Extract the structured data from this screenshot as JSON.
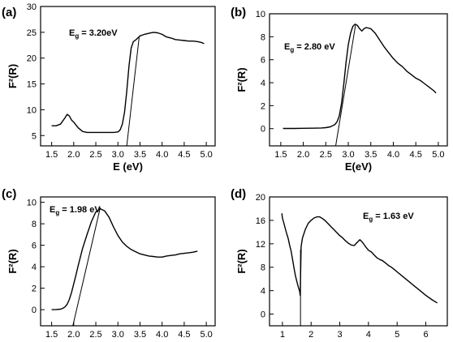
{
  "chart_data": [
    {
      "type": "line",
      "panel": "(a)",
      "xlabel": "E (eV)",
      "ylabel": "F²(R)",
      "xlim": [
        1.25,
        5.2
      ],
      "ylim": [
        3,
        30
      ],
      "xticks": [
        "1.5",
        "2.0",
        "2.5",
        "3.0",
        "3.5",
        "4.0",
        "4.5",
        "5.0"
      ],
      "yticks": [
        "5",
        "10",
        "15",
        "20",
        "25",
        "30"
      ],
      "annotation": {
        "main": "E",
        "sub": "g",
        "rest": " = 3.20eV"
      },
      "series": [
        {
          "x": [
            1.5,
            1.6,
            1.7,
            1.8,
            1.85,
            1.9,
            1.95,
            2.0,
            2.1,
            2.2,
            2.3,
            2.5,
            2.7,
            2.9,
            3.0,
            3.05,
            3.1,
            3.15,
            3.2,
            3.25,
            3.3,
            3.35,
            3.4,
            3.5,
            3.6,
            3.7,
            3.8,
            3.9,
            4.0,
            4.1,
            4.2,
            4.3,
            4.4,
            4.5,
            4.6,
            4.7,
            4.8,
            4.9,
            4.95
          ],
          "y": [
            6.9,
            6.9,
            7.2,
            8.4,
            9.1,
            8.8,
            8.0,
            7.6,
            6.5,
            5.8,
            5.6,
            5.6,
            5.6,
            5.6,
            5.7,
            6.1,
            7.2,
            9.5,
            13.5,
            18.5,
            22.0,
            23.2,
            23.5,
            24.3,
            24.6,
            24.8,
            25.0,
            24.9,
            24.6,
            24.1,
            23.9,
            23.6,
            23.5,
            23.4,
            23.3,
            23.3,
            23.2,
            23.0,
            22.8
          ]
        }
      ],
      "tangent": {
        "x": [
          3.2,
          3.48
        ],
        "y": [
          3,
          24
        ]
      }
    },
    {
      "type": "line",
      "panel": "(b)",
      "xlabel": "E(eV)",
      "ylabel": "F²(R)",
      "xlim": [
        1.25,
        5.2
      ],
      "ylim": [
        -1.5,
        10
      ],
      "xticks": [
        "1.5",
        "2.0",
        "2.5",
        "3.0",
        "3.5",
        "4.0",
        "4.5",
        "5.0"
      ],
      "yticks": [
        "0",
        "2",
        "4",
        "6",
        "8",
        "10"
      ],
      "annotation": {
        "main": "E",
        "sub": "g",
        "rest": " = 2.80 eV"
      },
      "series": [
        {
          "x": [
            1.55,
            1.8,
            2.0,
            2.2,
            2.4,
            2.5,
            2.6,
            2.7,
            2.75,
            2.8,
            2.85,
            2.9,
            2.95,
            3.0,
            3.05,
            3.1,
            3.15,
            3.2,
            3.25,
            3.3,
            3.35,
            3.4,
            3.5,
            3.6,
            3.7,
            3.8,
            3.9,
            4.0,
            4.1,
            4.2,
            4.3,
            4.4,
            4.5,
            4.6,
            4.7,
            4.8,
            4.9,
            4.95
          ],
          "y": [
            0.02,
            0.02,
            0.03,
            0.04,
            0.06,
            0.09,
            0.16,
            0.35,
            0.6,
            1.1,
            2.2,
            3.9,
            5.8,
            7.3,
            8.3,
            8.9,
            9.1,
            9.0,
            8.7,
            8.5,
            8.7,
            8.8,
            8.7,
            8.3,
            7.7,
            7.1,
            6.6,
            6.1,
            5.7,
            5.4,
            5.0,
            4.7,
            4.4,
            4.2,
            3.9,
            3.6,
            3.3,
            3.1
          ]
        }
      ],
      "tangent": {
        "x": [
          2.72,
          3.16
        ],
        "y": [
          -1.5,
          9
        ]
      }
    },
    {
      "type": "line",
      "panel": "(c)",
      "xlabel": "E (eV)",
      "ylabel": "F²(R)",
      "xlim": [
        1.25,
        5.2
      ],
      "ylim": [
        -1.5,
        10.5
      ],
      "xticks": [
        "1.5",
        "2.0",
        "2.5",
        "3.0",
        "3.5",
        "4.0",
        "4.5",
        "5.0"
      ],
      "yticks": [
        "0",
        "2",
        "4",
        "6",
        "8",
        "10"
      ],
      "annotation": {
        "main": "E",
        "sub": "g",
        "rest": " = 1.98 eV"
      },
      "series": [
        {
          "x": [
            1.5,
            1.6,
            1.7,
            1.75,
            1.8,
            1.85,
            1.9,
            1.95,
            2.0,
            2.05,
            2.1,
            2.15,
            2.2,
            2.3,
            2.4,
            2.5,
            2.6,
            2.7,
            2.8,
            2.9,
            3.0,
            3.1,
            3.2,
            3.3,
            3.4,
            3.5,
            3.6,
            3.7,
            3.8,
            3.9,
            4.0,
            4.1,
            4.2,
            4.3,
            4.4,
            4.5,
            4.6,
            4.7,
            4.8
          ],
          "y": [
            0.0,
            0.02,
            0.05,
            0.12,
            0.25,
            0.5,
            0.95,
            1.6,
            2.4,
            3.2,
            4.1,
            4.9,
            5.7,
            7.0,
            8.2,
            9.1,
            9.4,
            9.2,
            8.6,
            7.7,
            6.9,
            6.3,
            5.9,
            5.6,
            5.4,
            5.2,
            5.1,
            5.0,
            4.95,
            4.9,
            4.9,
            5.0,
            5.05,
            5.1,
            5.2,
            5.25,
            5.3,
            5.35,
            5.45
          ]
        }
      ],
      "tangent": {
        "x": [
          1.98,
          2.6
        ],
        "y": [
          -1.5,
          9.5
        ]
      }
    },
    {
      "type": "line",
      "panel": "(d)",
      "xlabel": "Energy (eV)",
      "ylabel": "F²(R)",
      "xlim": [
        0.55,
        6.75
      ],
      "ylim": [
        -2,
        20
      ],
      "xticks": [
        "1",
        "2",
        "3",
        "4",
        "5",
        "6"
      ],
      "yticks": [
        "0",
        "4",
        "8",
        "12",
        "16",
        "20"
      ],
      "annotation": {
        "main": "E",
        "sub": "g",
        "rest": " = 1.63 eV"
      },
      "series": [
        {
          "x": [
            0.98,
            1.0,
            1.05,
            1.1,
            1.15,
            1.2,
            1.25,
            1.3,
            1.35,
            1.4,
            1.45,
            1.5,
            1.55,
            1.6,
            1.62,
            1.65,
            1.7,
            1.8,
            1.9,
            2.0,
            2.1,
            2.2,
            2.3,
            2.4,
            2.5,
            2.6,
            2.7,
            2.8,
            2.9,
            3.0,
            3.1,
            3.2,
            3.3,
            3.4,
            3.5,
            3.6,
            3.7,
            3.8,
            3.9,
            4.0,
            4.1,
            4.2,
            4.3,
            4.4,
            4.5,
            4.6,
            4.7,
            4.8,
            4.9,
            5.0,
            5.2,
            5.4,
            5.6,
            5.8,
            6.0,
            6.2,
            6.4
          ],
          "y": [
            17.2,
            16.4,
            15.5,
            14.6,
            13.7,
            12.9,
            11.8,
            10.8,
            9.4,
            8.0,
            6.6,
            5.6,
            4.7,
            3.9,
            3.2,
            11.5,
            13.0,
            14.5,
            15.5,
            16.0,
            16.4,
            16.6,
            16.6,
            16.3,
            15.9,
            15.4,
            14.9,
            14.4,
            13.9,
            13.4,
            13.0,
            12.5,
            12.1,
            11.8,
            11.7,
            12.2,
            12.7,
            12.2,
            11.5,
            10.9,
            10.6,
            10.1,
            9.6,
            9.3,
            9.1,
            8.7,
            8.3,
            8.0,
            7.6,
            7.2,
            6.4,
            5.6,
            4.8,
            4.0,
            3.2,
            2.5,
            1.9
          ]
        }
      ],
      "tangent": {
        "x": [
          1.63,
          1.63
        ],
        "y": [
          -2,
          11
        ]
      }
    }
  ]
}
